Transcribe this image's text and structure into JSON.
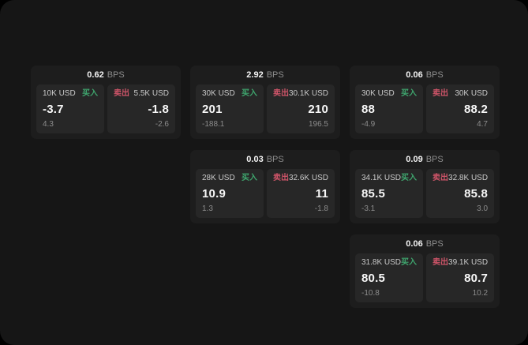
{
  "labels": {
    "bps": "BPS",
    "buy": "买入",
    "sell": "卖出"
  },
  "colors": {
    "buy": "#3fa66e",
    "sell": "#cd5468",
    "surface": "#161616",
    "card": "#1d1d1d",
    "panel": "#272727"
  },
  "cards": [
    {
      "bps": "0.62",
      "buy": {
        "size": "10K USD",
        "value": "-3.7",
        "sub": "4.3"
      },
      "sell": {
        "size": "5.5K USD",
        "value": "-1.8",
        "sub": "-2.6"
      }
    },
    {
      "bps": "2.92",
      "buy": {
        "size": "30K USD",
        "value": "201",
        "sub": "-188.1"
      },
      "sell": {
        "size": "30.1K USD",
        "value": "210",
        "sub": "196.5"
      }
    },
    {
      "bps": "0.06",
      "buy": {
        "size": "30K USD",
        "value": "88",
        "sub": "-4.9"
      },
      "sell": {
        "size": "30K USD",
        "value": "88.2",
        "sub": "4.7"
      }
    },
    {
      "bps": "0.03",
      "buy": {
        "size": "28K USD",
        "value": "10.9",
        "sub": "1.3"
      },
      "sell": {
        "size": "32.6K USD",
        "value": "11",
        "sub": "-1.8"
      }
    },
    {
      "bps": "0.09",
      "buy": {
        "size": "34.1K USD",
        "value": "85.5",
        "sub": "-3.1"
      },
      "sell": {
        "size": "32.8K USD",
        "value": "85.8",
        "sub": "3.0"
      }
    },
    {
      "bps": "0.06",
      "buy": {
        "size": "31.8K USD",
        "value": "80.5",
        "sub": "-10.8"
      },
      "sell": {
        "size": "39.1K USD",
        "value": "80.7",
        "sub": "10.2"
      }
    }
  ]
}
